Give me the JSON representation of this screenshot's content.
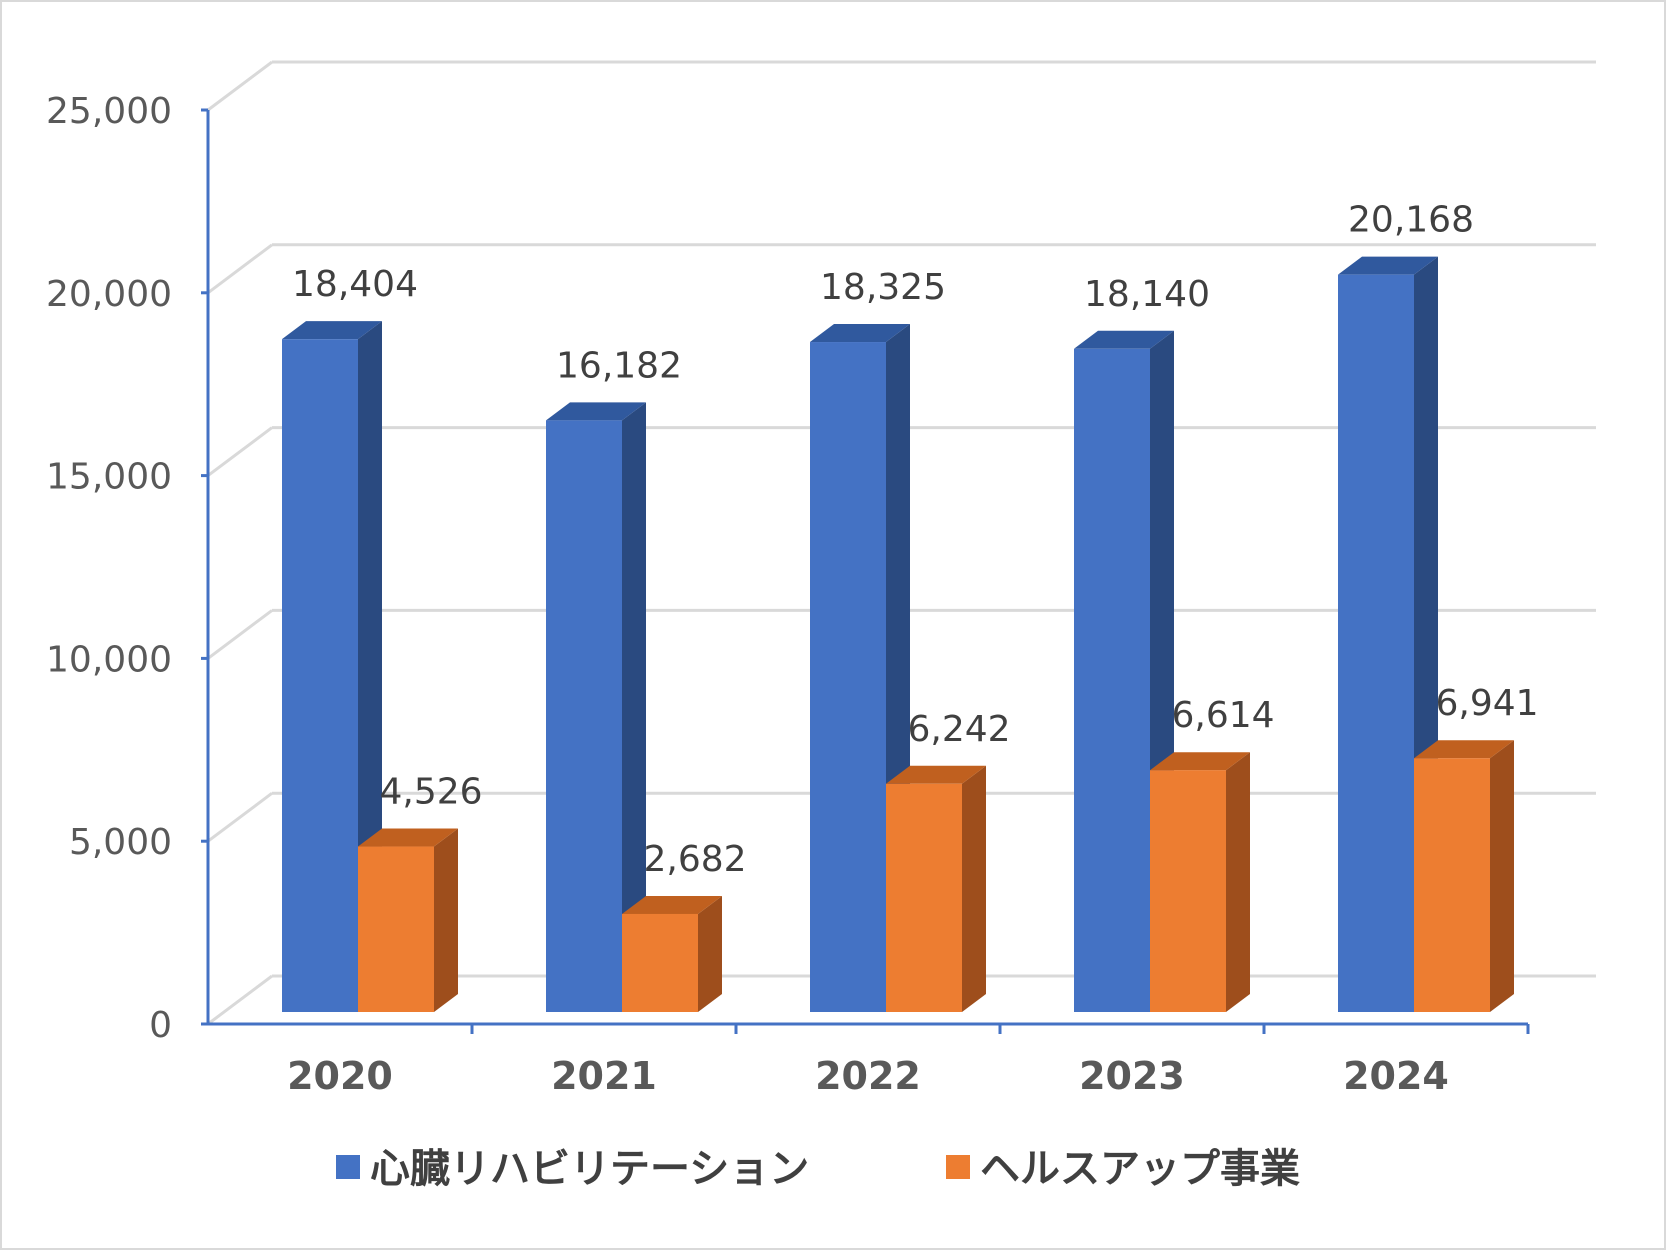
{
  "chart_data": {
    "type": "bar",
    "categories": [
      "2020",
      "2021",
      "2022",
      "2023",
      "2024"
    ],
    "series": [
      {
        "name": "心臓リハビリテーション",
        "values": [
          18404,
          16182,
          18325,
          18140,
          20168
        ],
        "labels": [
          "18,404",
          "16,182",
          "18,325",
          "18,140",
          "20,168"
        ],
        "color": "#4472C4",
        "side_color": "#2A4A80",
        "top_color": "#30599E"
      },
      {
        "name": "ヘルスアップ事業",
        "values": [
          4526,
          2682,
          6242,
          6614,
          6941
        ],
        "labels": [
          "4,526",
          "2,682",
          "6,242",
          "6,614",
          "6,941"
        ],
        "color": "#ED7D31",
        "side_color": "#9E4E1C",
        "top_color": "#C0601F"
      }
    ],
    "y_ticks": [
      "0",
      "5,000",
      "10,000",
      "15,000",
      "20,000",
      "25,000"
    ],
    "ylim": [
      0,
      25000
    ],
    "grid": true,
    "style": "3d-clustered-column",
    "axis_color": "#4472C4",
    "legend_position": "bottom"
  }
}
